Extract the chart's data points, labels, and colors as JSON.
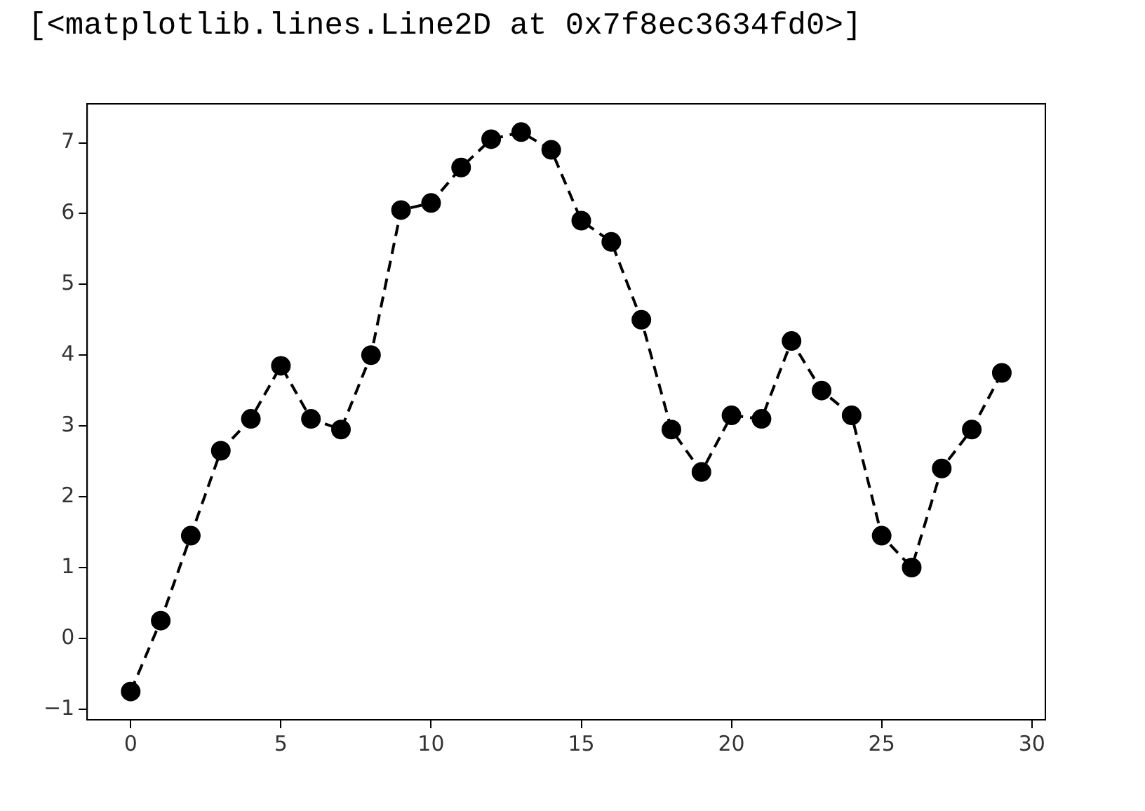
{
  "chart_data": {
    "type": "line",
    "annotations": [
      "[<matplotlib.lines.Line2D at 0x7f8ec3634fd0>]"
    ],
    "x": [
      0,
      1,
      2,
      3,
      4,
      5,
      6,
      7,
      8,
      9,
      10,
      11,
      12,
      13,
      14,
      15,
      16,
      17,
      18,
      19,
      20,
      21,
      22,
      23,
      24,
      25,
      26,
      27,
      28,
      29
    ],
    "series": [
      {
        "color": "#000000",
        "values": [
          -0.75,
          0.25,
          1.45,
          2.65,
          3.1,
          3.85,
          3.1,
          2.95,
          4.0,
          6.05,
          6.15,
          6.65,
          7.05,
          7.15,
          6.9,
          5.9,
          5.6,
          4.5,
          2.95,
          2.35,
          3.15,
          3.1,
          4.2,
          3.5,
          3.15,
          1.45,
          1.0,
          2.4,
          2.95,
          3.75
        ]
      }
    ],
    "xlim": [
      -1.45,
      30.45
    ],
    "xticks": [
      0,
      5,
      10,
      15,
      20,
      25,
      30
    ],
    "ylim": [
      -1.15,
      7.55
    ],
    "yticks": [
      -1,
      0,
      1,
      2,
      3,
      4,
      5,
      6,
      7
    ],
    "grid": false,
    "marker": "circle",
    "line_style": "dashed"
  }
}
